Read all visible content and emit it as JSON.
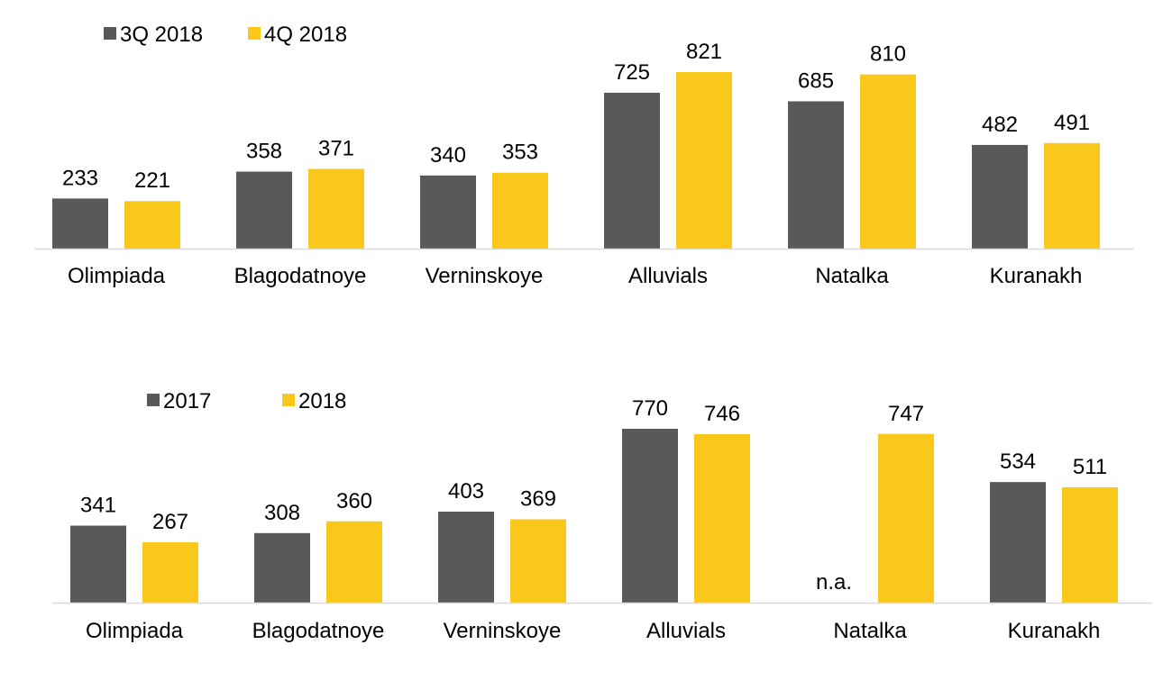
{
  "colors": {
    "dark": "#595959",
    "gold": "#FAC81A",
    "axis": "#D9D9D9"
  },
  "chart_data": [
    {
      "type": "bar",
      "categories": [
        "Olimpiada",
        "Blagodatnoye",
        "Verninskoye",
        "Alluvials",
        "Natalka",
        "Kuranakh"
      ],
      "series": [
        {
          "name": "3Q 2018",
          "values": [
            233,
            358,
            340,
            725,
            685,
            482
          ],
          "labels": [
            "233",
            "358",
            "340",
            "725",
            "685",
            "482"
          ]
        },
        {
          "name": "4Q 2018",
          "values": [
            221,
            371,
            353,
            821,
            810,
            491
          ],
          "labels": [
            "221",
            "371",
            "353",
            "821",
            "810",
            "491"
          ]
        }
      ],
      "legend": "top-left",
      "grid": false
    },
    {
      "type": "bar",
      "categories": [
        "Olimpiada",
        "Blagodatnoye",
        "Verninskoye",
        "Alluvials",
        "Natalka",
        "Kuranakh"
      ],
      "series": [
        {
          "name": "2017",
          "values": [
            341,
            308,
            403,
            770,
            null,
            534
          ],
          "labels": [
            "341",
            "308",
            "403",
            "770",
            "n.a.",
            "534"
          ]
        },
        {
          "name": "2018",
          "values": [
            267,
            360,
            369,
            746,
            747,
            511
          ],
          "labels": [
            "267",
            "360",
            "369",
            "746",
            "747",
            "511"
          ]
        }
      ],
      "legend": "top-left",
      "grid": false
    }
  ]
}
